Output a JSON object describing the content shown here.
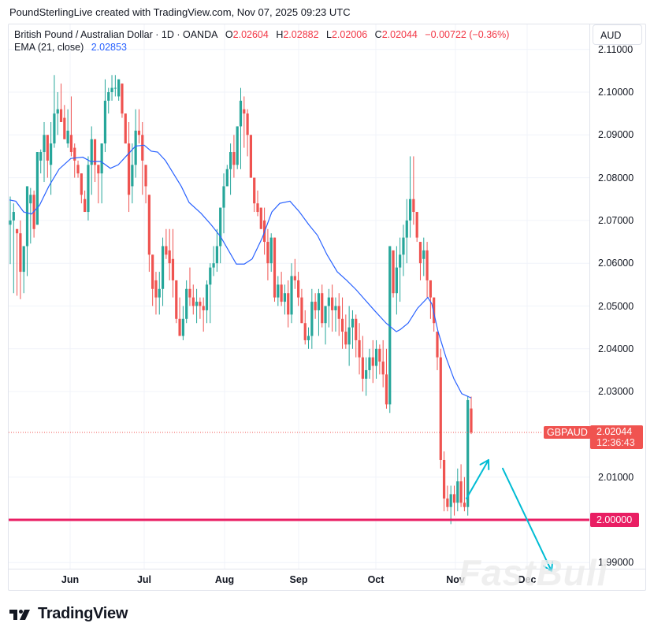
{
  "header": {
    "credit": "PoundSterlingLive created with TradingView.com, Nov 07, 2025 09:23 UTC"
  },
  "legend": {
    "symbol_desc": "British Pound / Australian Dollar · 1D · OANDA",
    "o_label": "O",
    "o_value": "2.02604",
    "h_label": "H",
    "h_value": "2.02882",
    "l_label": "L",
    "l_value": "2.02006",
    "c_label": "C",
    "c_value": "2.02044",
    "change": "−0.00722 (−0.36%)",
    "ema_label": "EMA (21, close)",
    "ema_value": "2.02853"
  },
  "currency_button": "AUD",
  "price_tag": {
    "symbol": "GBPAUD",
    "price": "2.02044",
    "countdown": "12:36:43",
    "color": "#f05350"
  },
  "level_tag": {
    "price": "2.00000",
    "color": "#e91e63"
  },
  "brand": {
    "name": "TradingView"
  },
  "watermark": "FastBull",
  "colors": {
    "up": "#26a69a",
    "down": "#ef5350",
    "ema": "#2962ff",
    "level": "#e91e63",
    "arrow": "#00bcd4",
    "grid": "#f0f3fa"
  },
  "chart_data": {
    "type": "candlestick",
    "title": "British Pound / Australian Dollar · 1D · OANDA",
    "symbol": "GBPAUD",
    "timeframe": "1D",
    "ylabel": "AUD",
    "ylim": [
      1.986,
      2.113
    ],
    "y_ticks": [
      "2.11000",
      "2.10000",
      "2.09000",
      "2.08000",
      "2.07000",
      "2.06000",
      "2.05000",
      "2.04000",
      "2.03000",
      "2.01000",
      "1.99000"
    ],
    "x_ticks": [
      "Jun",
      "Jul",
      "Aug",
      "Sep",
      "Oct",
      "Nov",
      "Dec"
    ],
    "grid": true,
    "horizontal_level": 2.0,
    "last_price": 2.02044,
    "ema_period": 21,
    "ema_last": 2.02853,
    "candles_ohlc": [
      [
        2.069,
        2.0756,
        2.0598,
        2.07
      ],
      [
        2.07,
        2.074,
        2.053,
        2.072
      ],
      [
        2.068,
        2.065,
        2.0524,
        2.067
      ],
      [
        2.067,
        2.07,
        2.0516,
        2.058
      ],
      [
        2.058,
        2.064,
        2.053,
        2.064
      ],
      [
        2.064,
        2.076,
        2.057,
        2.078
      ],
      [
        2.074,
        2.0776,
        2.0646,
        2.076
      ],
      [
        2.076,
        2.077,
        2.066,
        2.068
      ],
      [
        2.069,
        2.083,
        2.069,
        2.086
      ],
      [
        2.084,
        2.0866,
        2.081,
        2.086
      ],
      [
        2.086,
        2.093,
        2.079,
        2.09
      ],
      [
        2.09,
        2.09,
        2.08,
        2.084
      ],
      [
        2.083,
        2.093,
        2.076,
        2.088
      ],
      [
        2.088,
        2.104,
        2.087,
        2.095
      ],
      [
        2.095,
        2.1,
        2.09,
        2.096
      ],
      [
        2.096,
        2.102,
        2.094,
        2.093
      ],
      [
        2.094,
        2.097,
        2.091,
        2.089
      ],
      [
        2.088,
        2.096,
        2.087,
        2.091
      ],
      [
        2.09,
        2.099,
        2.085,
        2.086
      ],
      [
        2.087,
        2.088,
        2.08,
        2.084
      ],
      [
        2.083,
        2.084,
        2.08,
        2.081
      ],
      [
        2.081,
        2.078,
        2.074,
        2.076
      ],
      [
        2.075,
        2.077,
        2.073,
        2.072
      ],
      [
        2.072,
        2.085,
        2.07,
        2.083
      ],
      [
        2.083,
        2.092,
        2.076,
        2.089
      ],
      [
        2.089,
        2.084,
        2.079,
        2.083
      ],
      [
        2.083,
        2.077,
        2.074,
        2.081
      ],
      [
        2.081,
        2.088,
        2.074,
        2.088
      ],
      [
        2.088,
        2.103,
        2.086,
        2.098
      ],
      [
        2.098,
        2.101,
        2.095,
        2.1
      ],
      [
        2.1,
        2.104,
        2.098,
        2.101
      ],
      [
        2.101,
        2.104,
        2.099,
        2.101
      ],
      [
        2.099,
        2.102,
        2.098,
        2.103
      ],
      [
        2.102,
        2.101,
        2.094,
        2.095
      ],
      [
        2.095,
        2.093,
        2.09,
        2.088
      ],
      [
        2.088,
        2.093,
        2.072,
        2.076
      ],
      [
        2.078,
        2.088,
        2.074,
        2.083
      ],
      [
        2.083,
        2.096,
        2.08,
        2.091
      ],
      [
        2.091,
        2.096,
        2.088,
        2.09
      ],
      [
        2.09,
        2.093,
        2.076,
        2.084
      ],
      [
        2.083,
        2.08,
        2.074,
        2.078
      ],
      [
        2.076,
        2.064,
        2.058,
        2.062
      ],
      [
        2.062,
        2.06,
        2.05,
        2.054
      ],
      [
        2.056,
        2.058,
        2.048,
        2.052
      ],
      [
        2.052,
        2.058,
        2.048,
        2.054
      ],
      [
        2.054,
        2.066,
        2.05,
        2.064
      ],
      [
        2.064,
        2.068,
        2.061,
        2.062
      ],
      [
        2.063,
        2.068,
        2.056,
        2.06
      ],
      [
        2.061,
        2.068,
        2.052,
        2.056
      ],
      [
        2.056,
        2.056,
        2.046,
        2.047
      ],
      [
        2.047,
        2.052,
        2.044,
        2.043
      ],
      [
        2.043,
        2.05,
        2.042,
        2.047
      ],
      [
        2.047,
        2.056,
        2.046,
        2.054
      ],
      [
        2.054,
        2.059,
        2.05,
        2.052
      ],
      [
        2.052,
        2.055,
        2.048,
        2.05
      ],
      [
        2.05,
        2.054,
        2.046,
        2.051
      ],
      [
        2.051,
        2.052,
        2.047,
        2.05
      ],
      [
        2.05,
        2.052,
        2.044,
        2.049
      ],
      [
        2.049,
        2.056,
        2.046,
        2.055
      ],
      [
        2.055,
        2.06,
        2.046,
        2.059
      ],
      [
        2.059,
        2.064,
        2.057,
        2.06
      ],
      [
        2.06,
        2.068,
        2.058,
        2.064
      ],
      [
        2.064,
        2.073,
        2.06,
        2.073
      ],
      [
        2.073,
        2.081,
        2.067,
        2.078
      ],
      [
        2.078,
        2.083,
        2.078,
        2.082
      ],
      [
        2.082,
        2.088,
        2.076,
        2.086
      ],
      [
        2.086,
        2.09,
        2.08,
        2.083
      ],
      [
        2.083,
        2.092,
        2.082,
        2.092
      ],
      [
        2.092,
        2.101,
        2.082,
        2.098
      ],
      [
        2.096,
        2.099,
        2.087,
        2.095
      ],
      [
        2.095,
        2.096,
        2.085,
        2.09
      ],
      [
        2.09,
        2.09,
        2.08,
        2.08
      ],
      [
        2.08,
        2.078,
        2.072,
        2.074
      ],
      [
        2.074,
        2.077,
        2.071,
        2.072
      ],
      [
        2.073,
        2.07,
        2.068,
        2.068
      ],
      [
        2.07,
        2.073,
        2.062,
        2.065
      ],
      [
        2.065,
        2.068,
        2.056,
        2.06
      ],
      [
        2.06,
        2.067,
        2.058,
        2.066
      ],
      [
        2.066,
        2.066,
        2.051,
        2.052
      ],
      [
        2.052,
        2.057,
        2.05,
        2.055
      ],
      [
        2.055,
        2.058,
        2.05,
        2.051
      ],
      [
        2.051,
        2.055,
        2.048,
        2.053
      ],
      [
        2.053,
        2.056,
        2.045,
        2.048
      ],
      [
        2.048,
        2.06,
        2.046,
        2.057
      ],
      [
        2.057,
        2.061,
        2.054,
        2.056
      ],
      [
        2.056,
        2.058,
        2.05,
        2.052
      ],
      [
        2.052,
        2.054,
        2.046,
        2.046
      ],
      [
        2.046,
        2.049,
        2.041,
        2.042
      ],
      [
        2.042,
        2.045,
        2.04,
        2.043
      ],
      [
        2.043,
        2.054,
        2.04,
        2.051
      ],
      [
        2.051,
        2.053,
        2.047,
        2.049
      ],
      [
        2.049,
        2.054,
        2.043,
        2.053
      ],
      [
        2.053,
        2.055,
        2.045,
        2.046
      ],
      [
        2.046,
        2.049,
        2.041,
        2.05
      ],
      [
        2.05,
        2.054,
        2.045,
        2.052
      ],
      [
        2.052,
        2.055,
        2.044,
        2.049
      ],
      [
        2.049,
        2.052,
        2.044,
        2.05
      ],
      [
        2.05,
        2.053,
        2.043,
        2.047
      ],
      [
        2.047,
        2.052,
        2.04,
        2.044
      ],
      [
        2.044,
        2.048,
        2.04,
        2.041
      ],
      [
        2.041,
        2.05,
        2.036,
        2.045
      ],
      [
        2.045,
        2.049,
        2.04,
        2.047
      ],
      [
        2.047,
        2.048,
        2.038,
        2.042
      ],
      [
        2.042,
        2.046,
        2.034,
        2.038
      ],
      [
        2.038,
        2.043,
        2.03,
        2.033
      ],
      [
        2.033,
        2.038,
        2.029,
        2.035
      ],
      [
        2.035,
        2.04,
        2.033,
        2.038
      ],
      [
        2.038,
        2.042,
        2.032,
        2.036
      ],
      [
        2.036,
        2.042,
        2.033,
        2.04
      ],
      [
        2.04,
        2.041,
        2.034,
        2.037
      ],
      [
        2.037,
        2.042,
        2.031,
        2.034
      ],
      [
        2.034,
        2.04,
        2.026,
        2.027
      ],
      [
        2.027,
        2.064,
        2.025,
        2.064
      ],
      [
        2.063,
        2.058,
        2.052,
        2.053
      ],
      [
        2.053,
        2.064,
        2.048,
        2.059
      ],
      [
        2.059,
        2.066,
        2.051,
        2.062
      ],
      [
        2.062,
        2.069,
        2.057,
        2.066
      ],
      [
        2.066,
        2.075,
        2.06,
        2.07
      ],
      [
        2.07,
        2.085,
        2.066,
        2.075
      ],
      [
        2.075,
        2.085,
        2.069,
        2.072
      ],
      [
        2.072,
        2.072,
        2.065,
        2.066
      ],
      [
        2.065,
        2.064,
        2.056,
        2.06
      ],
      [
        2.061,
        2.066,
        2.057,
        2.063
      ],
      [
        2.063,
        2.065,
        2.052,
        2.056
      ],
      [
        2.056,
        2.056,
        2.047,
        2.052
      ],
      [
        2.052,
        2.052,
        2.044,
        2.046
      ],
      [
        2.044,
        2.042,
        2.035,
        2.038
      ],
      [
        2.038,
        2.04,
        2.012,
        2.014
      ],
      [
        2.014,
        2.016,
        2.002,
        2.005
      ],
      [
        2.005,
        2.008,
        2.002,
        2.003
      ],
      [
        2.003,
        2.008,
        1.999,
        2.006
      ],
      [
        2.006,
        2.008,
        2.001,
        2.004
      ],
      [
        2.004,
        2.012,
        2.002,
        2.009
      ],
      [
        2.009,
        2.013,
        2.003,
        2.004
      ],
      [
        2.004,
        2.01,
        2.002,
        2.003
      ],
      [
        2.003,
        2.029,
        2.001,
        2.028
      ],
      [
        2.02604,
        2.02882,
        2.02006,
        2.02044
      ]
    ],
    "ema_points_approx": [
      [
        12,
        2.0748
      ],
      [
        20,
        2.0745
      ],
      [
        30,
        2.072
      ],
      [
        40,
        2.0715
      ],
      [
        50,
        2.0735
      ],
      [
        62,
        2.078
      ],
      [
        75,
        2.082
      ],
      [
        90,
        2.0845
      ],
      [
        105,
        2.0848
      ],
      [
        115,
        2.0838
      ],
      [
        128,
        2.0838
      ],
      [
        140,
        2.0822
      ],
      [
        150,
        2.083
      ],
      [
        160,
        2.085
      ],
      [
        172,
        2.0874
      ],
      [
        183,
        2.0876
      ],
      [
        192,
        2.0862
      ],
      [
        200,
        2.086
      ],
      [
        210,
        2.084
      ],
      [
        220,
        2.081
      ],
      [
        230,
        2.078
      ],
      [
        240,
        2.0742
      ],
      [
        255,
        2.0717
      ],
      [
        268,
        2.069
      ],
      [
        280,
        2.0662
      ],
      [
        290,
        2.063
      ],
      [
        300,
        2.0598
      ],
      [
        310,
        2.0598
      ],
      [
        320,
        2.061
      ],
      [
        333,
        2.066
      ],
      [
        345,
        2.072
      ],
      [
        355,
        2.074
      ],
      [
        368,
        2.0745
      ],
      [
        380,
        2.072
      ],
      [
        392,
        2.069
      ],
      [
        403,
        2.0665
      ],
      [
        415,
        2.062
      ],
      [
        428,
        2.058
      ],
      [
        440,
        2.056
      ],
      [
        452,
        2.0538
      ],
      [
        463,
        2.0515
      ],
      [
        475,
        2.049
      ],
      [
        490,
        2.046
      ],
      [
        503,
        2.044
      ],
      [
        508,
        2.0445
      ],
      [
        518,
        2.046
      ],
      [
        530,
        2.0495
      ],
      [
        543,
        2.052
      ],
      [
        548,
        2.0505
      ],
      [
        556,
        2.044
      ],
      [
        566,
        2.038
      ],
      [
        576,
        2.033
      ],
      [
        586,
        2.0295
      ],
      [
        598,
        2.0285
      ]
    ],
    "annotations": [
      {
        "type": "arrow",
        "desc": "projected bounce up",
        "from": [
          592,
          2.005
        ],
        "to": [
          620,
          2.014
        ]
      },
      {
        "type": "arrow",
        "desc": "projected decline below 2.00",
        "from": [
          638,
          2.012
        ],
        "to": [
          700,
          1.988
        ]
      },
      {
        "type": "hline",
        "price": 2.0,
        "label": "2.00000"
      }
    ]
  }
}
